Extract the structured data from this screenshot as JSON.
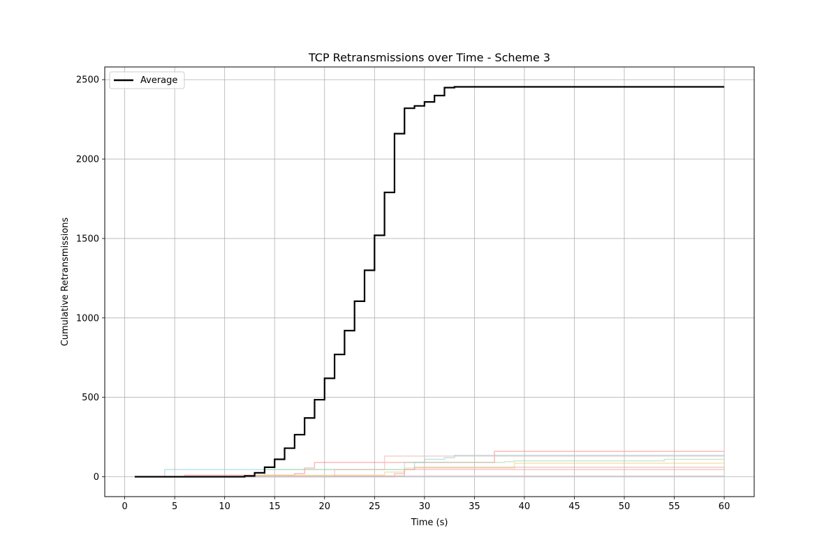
{
  "chart_data": {
    "type": "line",
    "title": "TCP Retransmissions over Time - Scheme 3",
    "xlabel": "Time (s)",
    "ylabel": "Cumulative Retransmissions",
    "xlim": [
      -2,
      63
    ],
    "ylim": [
      -125,
      2580
    ],
    "xticks": [
      0,
      5,
      10,
      15,
      20,
      25,
      30,
      35,
      40,
      45,
      50,
      55,
      60
    ],
    "yticks": [
      0,
      500,
      1000,
      1500,
      2000,
      2500
    ],
    "grid": true,
    "legend": {
      "placement": "top-left",
      "entries": [
        "Average"
      ]
    },
    "series": [
      {
        "name": "Average",
        "color": "#000000",
        "highlight": true,
        "step": true,
        "x": [
          1,
          2,
          3,
          4,
          5,
          6,
          7,
          8,
          9,
          10,
          11,
          12,
          13,
          14,
          15,
          16,
          17,
          18,
          19,
          20,
          21,
          22,
          23,
          24,
          25,
          26,
          27,
          28,
          29,
          30,
          31,
          32,
          33,
          34,
          35,
          36,
          37,
          38,
          39,
          40,
          45,
          50,
          55,
          60
        ],
        "y": [
          0,
          0,
          0,
          0,
          0,
          0,
          0,
          0,
          0,
          0,
          0,
          5,
          25,
          60,
          110,
          180,
          265,
          370,
          485,
          620,
          770,
          920,
          1105,
          1300,
          1520,
          1790,
          2160,
          2320,
          2335,
          2360,
          2400,
          2450,
          2455,
          2455,
          2455,
          2455,
          2455,
          2455,
          2455,
          2455,
          2455,
          2455,
          2455,
          2455
        ]
      },
      {
        "color": "#ff8a8a",
        "step": true,
        "x": [
          1,
          5,
          6,
          13,
          17,
          18,
          19,
          25,
          26,
          37,
          60
        ],
        "y": [
          0,
          0,
          10,
          10,
          20,
          55,
          90,
          90,
          90,
          160,
          160
        ]
      },
      {
        "color": "#8fd0e0",
        "step": true,
        "x": [
          1,
          3,
          4,
          6,
          13,
          16,
          29,
          30,
          32,
          33,
          35,
          60
        ],
        "y": [
          0,
          0,
          45,
          45,
          45,
          45,
          90,
          110,
          120,
          135,
          135,
          135
        ]
      },
      {
        "color": "#a8d8b0",
        "step": true,
        "x": [
          1,
          13,
          14,
          21,
          26,
          27,
          28,
          38,
          39,
          53,
          54,
          60
        ],
        "y": [
          0,
          0,
          45,
          45,
          45,
          45,
          90,
          95,
          100,
          100,
          110,
          110
        ]
      },
      {
        "color": "#e8b8a8",
        "step": true,
        "x": [
          1,
          13,
          21,
          25,
          26,
          34,
          60
        ],
        "y": [
          0,
          0,
          45,
          45,
          130,
          130,
          130
        ]
      },
      {
        "color": "#f0d080",
        "step": true,
        "x": [
          1,
          13,
          25,
          26,
          28,
          37,
          38,
          39,
          60
        ],
        "y": [
          0,
          10,
          10,
          30,
          55,
          55,
          55,
          85,
          85
        ]
      },
      {
        "color": "#d8b090",
        "step": true,
        "x": [
          1,
          13,
          26,
          28,
          29,
          38,
          60
        ],
        "y": [
          0,
          5,
          5,
          45,
          60,
          60,
          60
        ]
      },
      {
        "color": "#f0a0b0",
        "step": true,
        "x": [
          1,
          20,
          27,
          28,
          60
        ],
        "y": [
          0,
          0,
          20,
          45,
          45
        ]
      },
      {
        "color": "#ffb8a0",
        "step": true,
        "x": [
          1,
          15,
          21,
          60
        ],
        "y": [
          0,
          0,
          5,
          5
        ]
      },
      {
        "color": "#a0c8e0",
        "step": true,
        "x": [
          1,
          60
        ],
        "y": [
          0,
          0
        ]
      }
    ]
  }
}
